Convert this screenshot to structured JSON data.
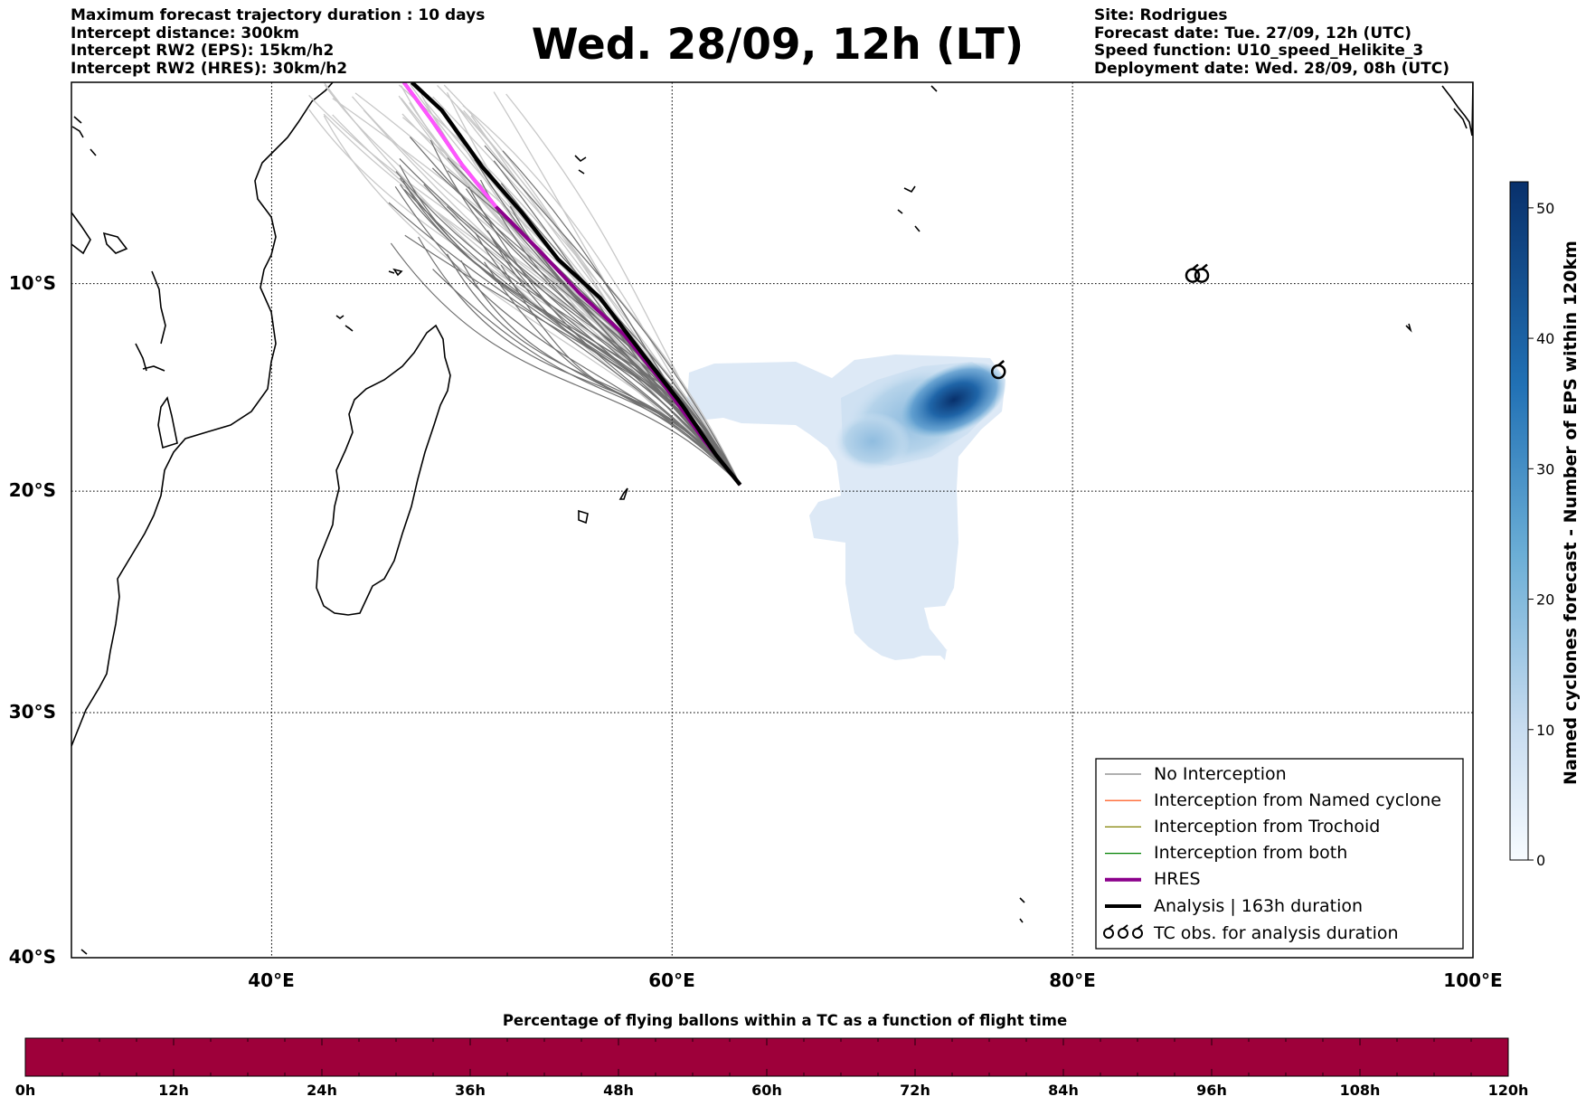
{
  "title": "Wed. 28/09, 12h (LT)",
  "info_left": [
    "Maximum forecast trajectory duration : 10 days",
    "Intercept distance: 300km",
    "Intercept RW2 (EPS):  15km/h2",
    "Intercept RW2 (HRES): 30km/h2"
  ],
  "info_right": [
    "Site: Rodrigues",
    "Forecast date: Tue. 27/09, 12h (UTC)",
    "Speed function: U10_speed_Helikite_3",
    "Deployment date: Wed. 28/09, 08h (UTC)"
  ],
  "map": {
    "lat_labels": [
      "10°S",
      "20°S",
      "30°S",
      "40°S"
    ],
    "lon_labels": [
      "40°E",
      "60°E",
      "80°E",
      "100°E"
    ],
    "lon_range": [
      30,
      100
    ],
    "lat_range": [
      0,
      -40
    ],
    "grid": "dotted",
    "analysis_track": [
      [
        47.0,
        0.0
      ],
      [
        48.5,
        -1.4
      ],
      [
        50.5,
        -4.2
      ],
      [
        52.5,
        -6.5
      ],
      [
        54.3,
        -8.8
      ],
      [
        56.4,
        -10.7
      ],
      [
        58.5,
        -13.4
      ],
      [
        60.5,
        -15.9
      ],
      [
        62.2,
        -18.3
      ],
      [
        63.4,
        -19.7
      ]
    ],
    "hres_track": [
      [
        46.6,
        0.0
      ],
      [
        48.0,
        -1.9
      ],
      [
        49.5,
        -4.1
      ],
      [
        51.2,
        -6.2
      ],
      [
        53.3,
        -8.3
      ],
      [
        55.4,
        -10.5
      ],
      [
        57.6,
        -12.5
      ],
      [
        59.5,
        -14.8
      ],
      [
        61.6,
        -17.6
      ],
      [
        63.4,
        -19.7
      ]
    ],
    "deployment_site": [
      63.4,
      -19.7
    ],
    "tc_symbols": [
      [
        76.3,
        -14.3
      ],
      [
        86.0,
        -9.6
      ]
    ],
    "colors": {
      "hres": "#8b008b",
      "hres_early": "#ff55ff",
      "analysis": "#000000",
      "no_interception": "#808080",
      "named_cyclone": "#ff4500",
      "trochoid": "#808000",
      "both": "#008000",
      "density_light": "#dbe9f6",
      "density_dark": "#08306b"
    }
  },
  "legend": {
    "items": [
      {
        "label": "No Interception",
        "color": "#808080",
        "width": 1.2
      },
      {
        "label": "Interception from Named cyclone",
        "color": "#ff4500",
        "width": 1.2
      },
      {
        "label": "Interception from Trochoid",
        "color": "#808000",
        "width": 1.2
      },
      {
        "label": "Interception from both",
        "color": "#008000",
        "width": 1.2
      },
      {
        "label": "HRES",
        "color": "#8b008b",
        "width": 4
      },
      {
        "label": "Analysis | 163h duration",
        "color": "#000000",
        "width": 4
      },
      {
        "label": "TC obs. for analysis duration",
        "icon": "cyclone-symbols"
      }
    ]
  },
  "colorbar": {
    "label": "Named cyclones forecast - Number of EPS within 120km",
    "ticks": [
      "0",
      "10",
      "20",
      "30",
      "40",
      "50"
    ],
    "tick_values": [
      0,
      10,
      20,
      30,
      40,
      50
    ],
    "max": 52,
    "color_low": "#f7fbff",
    "color_high": "#08306b"
  },
  "timeline": {
    "title": "Percentage of flying ballons within a TC as a function of flight time",
    "ticks": [
      "0h",
      "12h",
      "24h",
      "36h",
      "48h",
      "60h",
      "72h",
      "84h",
      "96h",
      "108h",
      "120h"
    ],
    "fill_color": "#9e003a"
  }
}
